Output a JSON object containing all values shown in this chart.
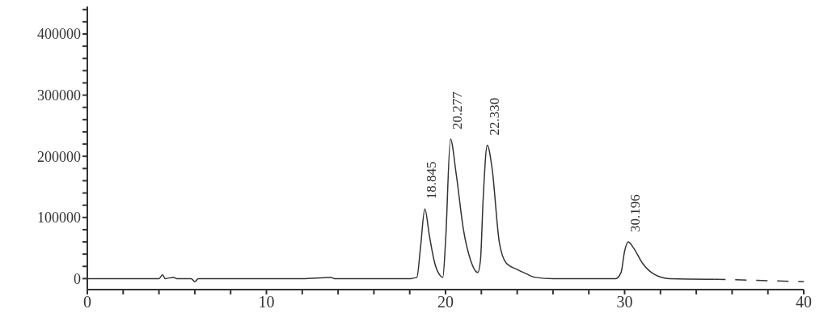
{
  "chart_data": {
    "type": "line",
    "xlim": [
      0,
      40
    ],
    "ylim": [
      -18000,
      445000
    ],
    "xticks": [
      0,
      {
        "value": 2,
        "label": null
      },
      {
        "value": 4,
        "label": null
      },
      {
        "value": 6,
        "label": null
      },
      {
        "value": 8,
        "label": null
      },
      10,
      {
        "value": 12,
        "label": null
      },
      {
        "value": 14,
        "label": null
      },
      {
        "value": 16,
        "label": null
      },
      {
        "value": 18,
        "label": null
      },
      20,
      {
        "value": 22,
        "label": null
      },
      {
        "value": 24,
        "label": null
      },
      {
        "value": 26,
        "label": null
      },
      {
        "value": 28,
        "label": null
      },
      30,
      {
        "value": 32,
        "label": null
      },
      {
        "value": 34,
        "label": null
      },
      {
        "value": 36,
        "label": null
      },
      {
        "value": 38,
        "label": null
      },
      40
    ],
    "yticks": [
      0,
      {
        "value": 20000,
        "label": null
      },
      {
        "value": 40000,
        "label": null
      },
      {
        "value": 60000,
        "label": null
      },
      {
        "value": 80000,
        "label": null
      },
      100000,
      {
        "value": 120000,
        "label": null
      },
      {
        "value": 140000,
        "label": null
      },
      {
        "value": 160000,
        "label": null
      },
      {
        "value": 180000,
        "label": null
      },
      200000,
      {
        "value": 220000,
        "label": null
      },
      {
        "value": 240000,
        "label": null
      },
      {
        "value": 260000,
        "label": null
      },
      {
        "value": 280000,
        "label": null
      },
      300000,
      {
        "value": 320000,
        "label": null
      },
      {
        "value": 340000,
        "label": null
      },
      {
        "value": 360000,
        "label": null
      },
      {
        "value": 380000,
        "label": null
      },
      400000,
      {
        "value": 420000,
        "label": null
      },
      {
        "value": 440000,
        "label": null
      }
    ],
    "marker": "none",
    "series": [
      {
        "color": "#333333",
        "line_style": "solid",
        "x": [
          0,
          2,
          4,
          4.2,
          4.35,
          4.8,
          5,
          5.8,
          6,
          6.2,
          8,
          8.2,
          12,
          13.6,
          13.8,
          18,
          18.4,
          18.6,
          18.845,
          19.1,
          19.4,
          19.7,
          19.85,
          20.0,
          20.277,
          20.6,
          21.0,
          21.4,
          21.8,
          21.95,
          22.1,
          22.33,
          22.6,
          23.0,
          23.4,
          24,
          24.5,
          25,
          26,
          29.5,
          29.8,
          30.0,
          30.196,
          30.5,
          31,
          31.6,
          32.5,
          35
        ],
        "values": [
          0,
          0,
          0,
          6000,
          0,
          2000,
          0,
          0,
          -5000,
          0,
          0,
          0,
          0,
          2000,
          0,
          0,
          2000,
          50000,
          114000,
          70000,
          25000,
          5000,
          2000,
          60000,
          228000,
          170000,
          80000,
          30000,
          10000,
          30000,
          130000,
          218000,
          180000,
          60000,
          25000,
          15000,
          8000,
          2000,
          0,
          0,
          10000,
          45000,
          60000,
          50000,
          25000,
          8000,
          0,
          -1000
        ]
      },
      {
        "color": "#333333",
        "line_style": "dashed",
        "x": [
          35,
          40
        ],
        "values": [
          -1000,
          -5000
        ]
      }
    ],
    "annotations": [
      {
        "text": "18.845",
        "x": 18.845,
        "y": 114000
      },
      {
        "text": "20.277",
        "x": 20.277,
        "y": 228000
      },
      {
        "text": "22.330",
        "x": 22.33,
        "y": 218000
      },
      {
        "text": "30.196",
        "x": 30.196,
        "y": 60000
      }
    ]
  }
}
